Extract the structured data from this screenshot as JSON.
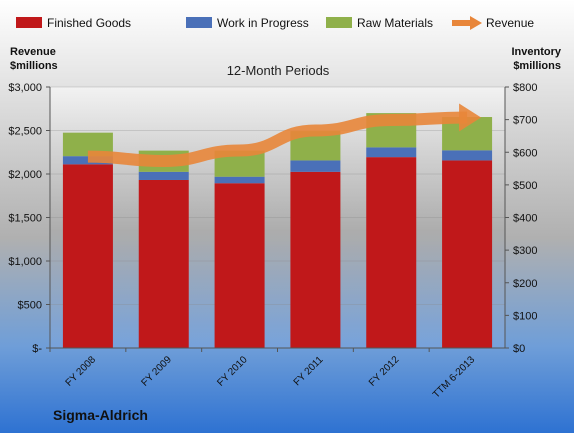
{
  "chart_data": {
    "type": "bar",
    "title": "12-Month Periods",
    "company": "Sigma-Aldrich",
    "left_axis": {
      "label_line1": "Revenue",
      "label_line2": "$millions",
      "range": [
        0,
        3000
      ],
      "ticks": [
        "$-",
        "$500",
        "$1,000",
        "$1,500",
        "$2,000",
        "$2,500",
        "$3,000"
      ]
    },
    "right_axis": {
      "label_line1": "Inventory",
      "label_line2": "$millions",
      "range": [
        0,
        800
      ],
      "ticks": [
        "$0",
        "$100",
        "$200",
        "$300",
        "$400",
        "$500",
        "$600",
        "$700",
        "$800"
      ]
    },
    "categories": [
      "FY 2008",
      "FY 2009",
      "FY 2010",
      "FY 2011",
      "FY 2012",
      "TTM 6-2013"
    ],
    "legend_position": "top",
    "series": [
      {
        "name": "Finished Goods",
        "axis": "right",
        "kind": "stacked-bar",
        "color": "#c0181a",
        "values": [
          563,
          515,
          505,
          540,
          585,
          575
        ]
      },
      {
        "name": "Work in Progress",
        "axis": "right",
        "kind": "stacked-bar",
        "color": "#4a70b8",
        "values": [
          25,
          25,
          20,
          35,
          30,
          31
        ]
      },
      {
        "name": "Raw Materials",
        "axis": "right",
        "kind": "stacked-bar",
        "color": "#8fb04a",
        "values": [
          72,
          65,
          80,
          90,
          105,
          102
        ]
      },
      {
        "name": "Revenue",
        "axis": "left",
        "kind": "arrow-line",
        "color": "#e8863a",
        "values": [
          2200,
          2150,
          2270,
          2500,
          2620,
          2650
        ]
      }
    ]
  }
}
